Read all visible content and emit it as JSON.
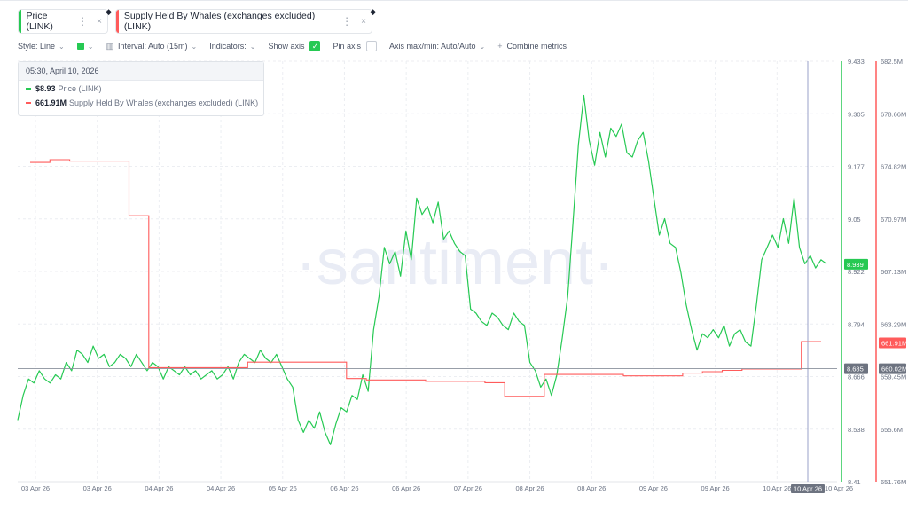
{
  "metrics": [
    {
      "label": "Price (LINK)",
      "color": "#26c953"
    },
    {
      "label": "Supply Held By Whales (exchanges excluded) (LINK)",
      "color": "#ff5b5b"
    }
  ],
  "toolbar": {
    "style": "Style: Line",
    "interval": "Interval: Auto (15m)",
    "indicators": "Indicators:",
    "show_axis": "Show axis",
    "pin_axis": "Pin axis",
    "axis_maxmin": "Axis max/min: Auto/Auto",
    "combine": "Combine metrics"
  },
  "tooltip": {
    "date": "05:30, April 10, 2026",
    "rows": [
      {
        "value": "$8.93",
        "label": "Price (LINK)",
        "color": "#26c953"
      },
      {
        "value": "661.91M",
        "label": "Supply Held By Whales (exchanges excluded) (LINK)",
        "color": "#ff5b5b"
      }
    ]
  },
  "watermark": "·santiment·",
  "chart_data": {
    "type": "line",
    "x_ticks": [
      "03 Apr 26",
      "03 Apr 26",
      "04 Apr 26",
      "04 Apr 26",
      "05 Apr 26",
      "06 Apr 26",
      "06 Apr 26",
      "07 Apr 26",
      "08 Apr 26",
      "08 Apr 26",
      "09 Apr 26",
      "09 Apr 26",
      "10 Apr 26",
      "10 Apr 26"
    ],
    "x_cursor_label": "10 Apr 26",
    "price_axis": {
      "ticks": [
        "9.433",
        "9.305",
        "9.177",
        "9.05",
        "8.922",
        "8.794",
        "8.666",
        "8.538",
        "8.41"
      ],
      "range": [
        8.41,
        9.433
      ]
    },
    "supply_axis": {
      "ticks": [
        "682.5M",
        "678.66M",
        "674.82M",
        "670.97M",
        "667.13M",
        "663.29M",
        "659.45M",
        "655.6M",
        "651.76M"
      ],
      "range": [
        651.76,
        682.5
      ]
    },
    "badges": {
      "price_last": "8.939",
      "price_cursor": "8.685",
      "supply_last": "661.91M",
      "supply_cursor": "660.02M"
    },
    "series": [
      {
        "name": "Price (LINK)",
        "color": "#26c953",
        "axis": "price",
        "values": [
          8.56,
          8.62,
          8.66,
          8.65,
          8.68,
          8.66,
          8.65,
          8.67,
          8.66,
          8.7,
          8.68,
          8.73,
          8.72,
          8.7,
          8.74,
          8.71,
          8.72,
          8.69,
          8.7,
          8.72,
          8.71,
          8.69,
          8.72,
          8.7,
          8.68,
          8.7,
          8.69,
          8.66,
          8.69,
          8.68,
          8.67,
          8.69,
          8.67,
          8.68,
          8.66,
          8.67,
          8.68,
          8.66,
          8.67,
          8.69,
          8.66,
          8.7,
          8.72,
          8.71,
          8.7,
          8.73,
          8.71,
          8.7,
          8.72,
          8.69,
          8.66,
          8.64,
          8.56,
          8.53,
          8.56,
          8.54,
          8.58,
          8.53,
          8.5,
          8.55,
          8.59,
          8.58,
          8.62,
          8.61,
          8.67,
          8.63,
          8.78,
          8.86,
          8.98,
          8.94,
          8.97,
          8.91,
          9.02,
          8.95,
          9.1,
          9.06,
          9.08,
          9.04,
          9.09,
          9.0,
          9.02,
          8.99,
          8.97,
          8.96,
          8.83,
          8.82,
          8.8,
          8.79,
          8.82,
          8.81,
          8.79,
          8.78,
          8.82,
          8.8,
          8.79,
          8.7,
          8.68,
          8.64,
          8.66,
          8.62,
          8.67,
          8.76,
          8.86,
          9.04,
          9.23,
          9.35,
          9.24,
          9.18,
          9.26,
          9.2,
          9.27,
          9.25,
          9.28,
          9.21,
          9.2,
          9.24,
          9.26,
          9.19,
          9.1,
          9.01,
          9.05,
          8.99,
          8.98,
          8.92,
          8.84,
          8.78,
          8.73,
          8.77,
          8.76,
          8.78,
          8.76,
          8.79,
          8.74,
          8.77,
          8.78,
          8.75,
          8.74,
          8.84,
          8.95,
          8.98,
          9.01,
          8.98,
          9.05,
          8.99,
          9.1,
          8.98,
          8.94,
          8.96,
          8.93,
          8.95,
          8.94
        ]
      },
      {
        "name": "Supply Held By Whales (exchanges excluded) (LINK)",
        "color": "#ff5b5b",
        "axis": "supply",
        "values": [
          675.1,
          675.3,
          675.2,
          675.2,
          675.2,
          671.2,
          660.1,
          660.1,
          660.1,
          660.1,
          660.1,
          660.5,
          660.5,
          660.5,
          660.5,
          660.5,
          659.3,
          659.2,
          659.2,
          659.2,
          659.1,
          659.1,
          659.1,
          659.0,
          658.0,
          658.0,
          659.6,
          659.6,
          659.6,
          659.6,
          659.5,
          659.5,
          659.5,
          659.7,
          659.8,
          659.9,
          660.0,
          660.0,
          660.0,
          662.0,
          662.0
        ]
      }
    ]
  }
}
